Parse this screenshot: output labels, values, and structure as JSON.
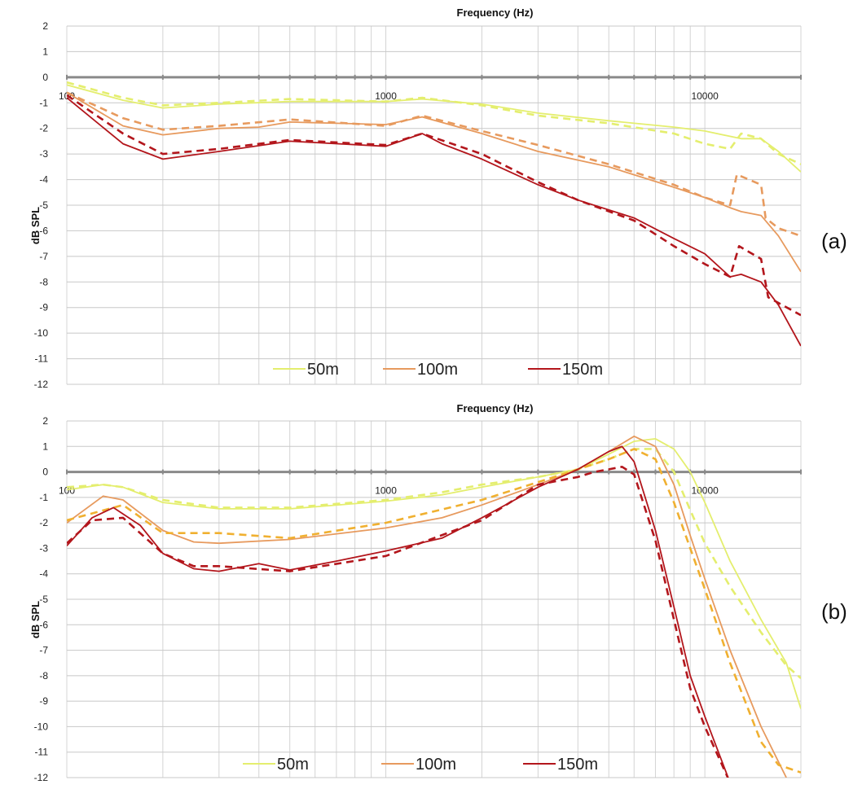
{
  "chart_data": [
    {
      "type": "line",
      "panel_label": "(a)",
      "title": "Frequency (Hz)",
      "xlabel": "Frequency (Hz)",
      "ylabel": "dB SPL",
      "xscale": "log",
      "xlim": [
        100,
        20000
      ],
      "ylim": [
        -12,
        2
      ],
      "yticks": [
        "2",
        "1",
        "0",
        "-1",
        "-2",
        "-3",
        "-4",
        "-5",
        "-6",
        "-7",
        "-8",
        "-9",
        "-10",
        "-11",
        "-12"
      ],
      "xtick_labels": [
        {
          "value": 100,
          "label": "100"
        },
        {
          "value": 1000,
          "label": "1000"
        },
        {
          "value": 10000,
          "label": "10000"
        }
      ],
      "grid": true,
      "legend": {
        "placement": "bottom-center",
        "entries": [
          "50m",
          "100m",
          "150m"
        ]
      },
      "colors": {
        "50m": "#e4ee6e",
        "100m": "#e79a5e",
        "150m": "#b3161c"
      },
      "series": [
        {
          "name": "50m",
          "style": "solid",
          "x": [
            100,
            150,
            200,
            300,
            500,
            1000,
            1300,
            2000,
            3000,
            5000,
            8000,
            10000,
            13000,
            15000,
            17000,
            20000
          ],
          "y": [
            -0.3,
            -0.9,
            -1.2,
            -1.05,
            -0.95,
            -0.95,
            -0.85,
            -1.05,
            -1.4,
            -1.7,
            -1.95,
            -2.1,
            -2.4,
            -2.4,
            -2.9,
            -3.7
          ]
        },
        {
          "name": "50m",
          "style": "dashed",
          "x": [
            100,
            150,
            200,
            300,
            500,
            1000,
            1300,
            2000,
            3000,
            5000,
            8000,
            10000,
            12000,
            13000,
            15000,
            17000,
            20000
          ],
          "y": [
            -0.2,
            -0.8,
            -1.1,
            -1.0,
            -0.85,
            -0.95,
            -0.8,
            -1.1,
            -1.5,
            -1.8,
            -2.2,
            -2.6,
            -2.8,
            -2.2,
            -2.4,
            -3.0,
            -3.4
          ]
        },
        {
          "name": "100m",
          "style": "solid",
          "x": [
            100,
            150,
            200,
            300,
            400,
            500,
            700,
            1000,
            1300,
            2000,
            3000,
            5000,
            8000,
            10000,
            12000,
            13000,
            15000,
            17000,
            20000
          ],
          "y": [
            -0.6,
            -1.9,
            -2.25,
            -2.0,
            -1.95,
            -1.75,
            -1.8,
            -1.85,
            -1.55,
            -2.2,
            -2.9,
            -3.5,
            -4.3,
            -4.7,
            -5.1,
            -5.25,
            -5.4,
            -6.2,
            -7.6
          ]
        },
        {
          "name": "100m",
          "style": "dashed",
          "x": [
            100,
            150,
            200,
            300,
            500,
            1000,
            1300,
            2000,
            3000,
            5000,
            8000,
            10000,
            12000,
            12600,
            15000,
            15500,
            17000,
            20000
          ],
          "y": [
            -0.6,
            -1.6,
            -2.05,
            -1.9,
            -1.65,
            -1.9,
            -1.5,
            -2.1,
            -2.65,
            -3.4,
            -4.2,
            -4.7,
            -5.0,
            -3.8,
            -4.2,
            -5.5,
            -5.9,
            -6.2
          ]
        },
        {
          "name": "150m",
          "style": "solid",
          "x": [
            100,
            150,
            200,
            300,
            500,
            1000,
            1300,
            1500,
            2000,
            3000,
            4000,
            6000,
            8000,
            10000,
            12000,
            13000,
            15000,
            17000,
            20000
          ],
          "y": [
            -0.8,
            -2.6,
            -3.2,
            -2.9,
            -2.5,
            -2.7,
            -2.2,
            -2.6,
            -3.2,
            -4.2,
            -4.8,
            -5.5,
            -6.3,
            -6.9,
            -7.8,
            -7.7,
            -8.0,
            -8.9,
            -10.5
          ]
        },
        {
          "name": "150m",
          "style": "dashed",
          "x": [
            100,
            150,
            200,
            300,
            500,
            1000,
            1300,
            2000,
            3000,
            4000,
            6000,
            8000,
            10000,
            12000,
            12800,
            15000,
            15800,
            20000
          ],
          "y": [
            -0.7,
            -2.2,
            -3.0,
            -2.8,
            -2.45,
            -2.65,
            -2.2,
            -3.0,
            -4.1,
            -4.8,
            -5.6,
            -6.6,
            -7.3,
            -7.8,
            -6.6,
            -7.1,
            -8.6,
            -9.3
          ]
        }
      ]
    },
    {
      "type": "line",
      "panel_label": "(b)",
      "title": "Frequency (Hz)",
      "xlabel": "Frequency (Hz)",
      "ylabel": "dB SPL",
      "xscale": "log",
      "xlim": [
        100,
        20000
      ],
      "ylim": [
        -12,
        2
      ],
      "yticks": [
        "2",
        "1",
        "0",
        "-1",
        "-2",
        "-3",
        "-4",
        "-5",
        "-6",
        "-7",
        "-8",
        "-9",
        "-10",
        "-11",
        "-12"
      ],
      "xtick_labels": [
        {
          "value": 100,
          "label": "100"
        },
        {
          "value": 1000,
          "label": "1000"
        },
        {
          "value": 10000,
          "label": "10000"
        }
      ],
      "grid": true,
      "legend": {
        "placement": "bottom-center",
        "entries": [
          "50m",
          "100m",
          "150m"
        ]
      },
      "colors": {
        "50m": "#e4ee6e",
        "100m": "#e79a5e",
        "150m": "#b3161c",
        "100m_dashed": "#f0b030"
      },
      "series": [
        {
          "name": "50m",
          "style": "solid",
          "x": [
            100,
            130,
            150,
            200,
            300,
            500,
            1000,
            1500,
            2000,
            3000,
            4000,
            5000,
            6000,
            7000,
            8000,
            9000,
            10000,
            12000,
            15000,
            18000,
            20000
          ],
          "y": [
            -0.7,
            -0.5,
            -0.6,
            -1.2,
            -1.45,
            -1.45,
            -1.15,
            -0.9,
            -0.6,
            -0.2,
            0.1,
            0.7,
            1.2,
            1.3,
            0.9,
            0.0,
            -1.2,
            -3.5,
            -5.8,
            -7.5,
            -9.3
          ]
        },
        {
          "name": "50m",
          "style": "dashed",
          "x": [
            100,
            130,
            150,
            200,
            300,
            500,
            1000,
            1500,
            2000,
            3000,
            4000,
            5000,
            6000,
            7000,
            8000,
            9000,
            10000,
            12000,
            15000,
            18000,
            20000
          ],
          "y": [
            -0.6,
            -0.5,
            -0.6,
            -1.1,
            -1.4,
            -1.4,
            -1.1,
            -0.8,
            -0.5,
            -0.2,
            0.1,
            0.5,
            0.9,
            0.9,
            0.0,
            -1.5,
            -2.8,
            -4.5,
            -6.3,
            -7.6,
            -8.1
          ]
        },
        {
          "name": "100m",
          "style": "solid",
          "x": [
            100,
            130,
            150,
            200,
            250,
            300,
            500,
            1000,
            1500,
            2000,
            3000,
            4000,
            5000,
            6000,
            7000,
            8000,
            9000,
            10000,
            12000,
            15000,
            18000
          ],
          "y": [
            -2.0,
            -0.95,
            -1.1,
            -2.3,
            -2.75,
            -2.8,
            -2.65,
            -2.2,
            -1.8,
            -1.3,
            -0.5,
            0.1,
            0.8,
            1.4,
            1.0,
            -0.5,
            -2.5,
            -4.2,
            -7.0,
            -10.0,
            -12.0
          ]
        },
        {
          "name": "100m",
          "style": "dashed",
          "x": [
            100,
            150,
            200,
            300,
            500,
            1000,
            2000,
            3000,
            4000,
            5000,
            6000,
            7000,
            8000,
            9000,
            10000,
            12000,
            15000,
            17000,
            20000
          ],
          "y": [
            -1.9,
            -1.3,
            -2.4,
            -2.4,
            -2.6,
            -2.0,
            -1.1,
            -0.4,
            0.1,
            0.5,
            0.9,
            0.5,
            -1.2,
            -3.0,
            -4.6,
            -7.5,
            -10.6,
            -11.5,
            -11.8
          ]
        },
        {
          "name": "150m",
          "style": "solid",
          "x": [
            100,
            120,
            140,
            170,
            200,
            250,
            300,
            400,
            500,
            700,
            1000,
            1500,
            2000,
            3000,
            4000,
            5000,
            5500,
            6000,
            7000,
            8000,
            9000,
            10000,
            12000
          ],
          "y": [
            -2.9,
            -1.8,
            -1.4,
            -2.1,
            -3.2,
            -3.8,
            -3.9,
            -3.6,
            -3.85,
            -3.5,
            -3.1,
            -2.6,
            -1.8,
            -0.6,
            0.1,
            0.8,
            1.0,
            0.4,
            -2.3,
            -5.3,
            -8.0,
            -9.6,
            -12.2
          ]
        },
        {
          "name": "150m",
          "style": "dashed",
          "x": [
            100,
            120,
            150,
            200,
            250,
            300,
            500,
            1000,
            2000,
            3000,
            4000,
            4500,
            5000,
            5500,
            6000,
            7000,
            8000,
            9000,
            10000,
            12000
          ],
          "y": [
            -2.8,
            -1.9,
            -1.8,
            -3.2,
            -3.7,
            -3.7,
            -3.9,
            -3.3,
            -1.9,
            -0.5,
            -0.2,
            0.0,
            0.1,
            0.2,
            -0.1,
            -2.7,
            -5.8,
            -8.5,
            -10.0,
            -12.2
          ]
        }
      ]
    }
  ]
}
